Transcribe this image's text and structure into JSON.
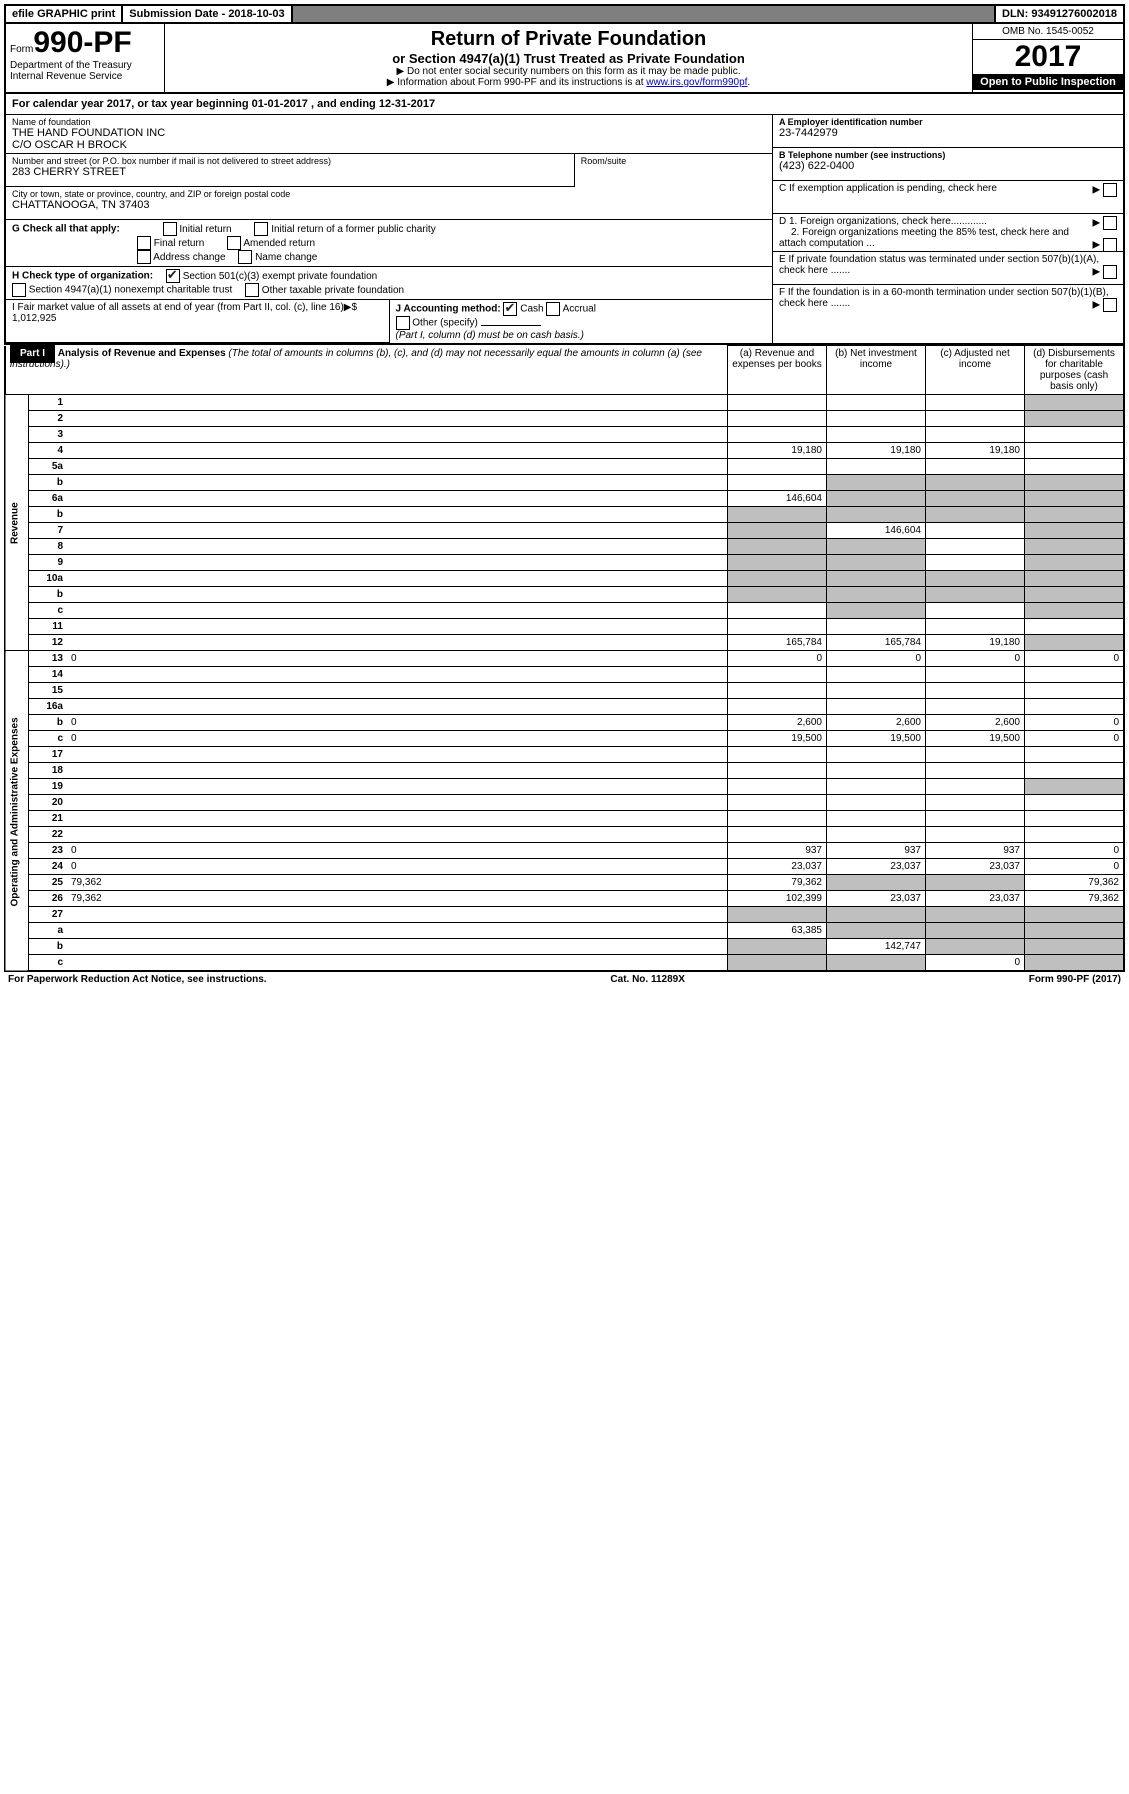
{
  "topbar": {
    "efile": "efile GRAPHIC print",
    "submission_label": "Submission Date - 2018-10-03",
    "dln": "DLN: 93491276002018"
  },
  "header": {
    "form_prefix": "Form",
    "form_number": "990-PF",
    "dept": "Department of the Treasury",
    "irs": "Internal Revenue Service",
    "title": "Return of Private Foundation",
    "subtitle": "or Section 4947(a)(1) Trust Treated as Private Foundation",
    "note1": "▶ Do not enter social security numbers on this form as it may be made public.",
    "note2_pre": "▶ Information about Form 990-PF and its instructions is at ",
    "note2_link": "www.irs.gov/form990pf",
    "note2_post": ".",
    "omb": "OMB No. 1545-0052",
    "year": "2017",
    "open": "Open to Public Inspection"
  },
  "calendar": {
    "text_pre": "For calendar year 2017, or tax year beginning ",
    "begin": "01-01-2017",
    "text_mid": " , and ending ",
    "end": "12-31-2017"
  },
  "foundation": {
    "name_lbl": "Name of foundation",
    "name1": "THE HAND FOUNDATION INC",
    "name2": "C/O OSCAR H BROCK",
    "addr_lbl": "Number and street (or P.O. box number if mail is not delivered to street address)",
    "addr": "283 CHERRY STREET",
    "room_lbl": "Room/suite",
    "room": "",
    "city_lbl": "City or town, state or province, country, and ZIP or foreign postal code",
    "city": "CHATTANOOGA, TN  37403",
    "ein_lbl": "A Employer identification number",
    "ein": "23-7442979",
    "tel_lbl": "B Telephone number (see instructions)",
    "tel": "(423) 622-0400",
    "c_lbl": "C If exemption application is pending, check here",
    "d1_lbl": "D 1. Foreign organizations, check here.............",
    "d2_lbl": "2. Foreign organizations meeting the 85% test, check here and attach computation ...",
    "e_lbl": "E  If private foundation status was terminated under section 507(b)(1)(A), check here .......",
    "f_lbl": "F  If the foundation is in a 60-month termination under section 507(b)(1)(B), check here .......",
    "g_lbl": "G Check all that apply:",
    "g_opts": [
      "Initial return",
      "Initial return of a former public charity",
      "Final return",
      "Amended return",
      "Address change",
      "Name change"
    ],
    "h_lbl": "H Check type of organization:",
    "h_opt1": "Section 501(c)(3) exempt private foundation",
    "h_opt2": "Section 4947(a)(1) nonexempt charitable trust",
    "h_opt3": "Other taxable private foundation",
    "i_lbl": "I Fair market value of all assets at end of year (from Part II, col. (c), line 16)▶$",
    "i_val": "1,012,925",
    "j_lbl": "J Accounting method:",
    "j_cash": "Cash",
    "j_accrual": "Accrual",
    "j_other": "Other (specify)",
    "j_note": "(Part I, column (d) must be on cash basis.)"
  },
  "part1": {
    "badge": "Part I",
    "title": "Analysis of Revenue and Expenses",
    "note": "(The total of amounts in columns (b), (c), and (d) may not necessarily equal the amounts in column (a) (see instructions).)",
    "col_a": "(a)  Revenue and expenses per books",
    "col_b": "(b)  Net investment income",
    "col_c": "(c)  Adjusted net income",
    "col_d": "(d)  Disbursements for charitable purposes (cash basis only)",
    "revenue_label": "Revenue",
    "expenses_label": "Operating and Administrative Expenses"
  },
  "rows": [
    {
      "n": "1",
      "d": "",
      "a": "",
      "b": "",
      "c": "",
      "sd": true
    },
    {
      "n": "2",
      "d": "",
      "a": "",
      "b": "",
      "c": "",
      "sd": true,
      "dots": true
    },
    {
      "n": "3",
      "d": "",
      "a": "",
      "b": "",
      "c": ""
    },
    {
      "n": "4",
      "d": "",
      "a": "19,180",
      "b": "19,180",
      "c": "19,180",
      "dots": true
    },
    {
      "n": "5a",
      "d": "",
      "a": "",
      "b": "",
      "c": "",
      "dots": true
    },
    {
      "n": "b",
      "d": "",
      "a": "",
      "b": "",
      "c": "",
      "sb": true,
      "sc": true,
      "sd": true
    },
    {
      "n": "6a",
      "d": "",
      "a": "146,604",
      "b": "",
      "c": "",
      "sb": true,
      "sc": true,
      "sd": true
    },
    {
      "n": "b",
      "d": "",
      "a": "",
      "b": "",
      "c": "",
      "sa": true,
      "sb": true,
      "sc": true,
      "sd": true
    },
    {
      "n": "7",
      "d": "",
      "a": "",
      "b": "146,604",
      "c": "",
      "sa": true,
      "sd": true,
      "dots": true
    },
    {
      "n": "8",
      "d": "",
      "a": "",
      "b": "",
      "c": "",
      "sa": true,
      "sb": true,
      "sd": true,
      "dots": true
    },
    {
      "n": "9",
      "d": "",
      "a": "",
      "b": "",
      "c": "",
      "sa": true,
      "sb": true,
      "sd": true,
      "dots": true
    },
    {
      "n": "10a",
      "d": "",
      "a": "",
      "b": "",
      "c": "",
      "sa": true,
      "sb": true,
      "sc": true,
      "sd": true
    },
    {
      "n": "b",
      "d": "",
      "a": "",
      "b": "",
      "c": "",
      "sa": true,
      "sb": true,
      "sc": true,
      "sd": true
    },
    {
      "n": "c",
      "d": "",
      "a": "",
      "b": "",
      "c": "",
      "sb": true,
      "sd": true,
      "dots": true
    },
    {
      "n": "11",
      "d": "",
      "a": "",
      "b": "",
      "c": "",
      "dots": true
    },
    {
      "n": "12",
      "d": "",
      "a": "165,784",
      "b": "165,784",
      "c": "19,180",
      "sd": true,
      "dots": true
    }
  ],
  "exp_rows": [
    {
      "n": "13",
      "d": "0",
      "a": "0",
      "b": "0",
      "c": "0"
    },
    {
      "n": "14",
      "d": "",
      "a": "",
      "b": "",
      "c": "",
      "dots": true
    },
    {
      "n": "15",
      "d": "",
      "a": "",
      "b": "",
      "c": "",
      "dots": true
    },
    {
      "n": "16a",
      "d": "",
      "a": "",
      "b": "",
      "c": "",
      "dots": true
    },
    {
      "n": "b",
      "d": "0",
      "a": "2,600",
      "b": "2,600",
      "c": "2,600",
      "dots": true
    },
    {
      "n": "c",
      "d": "0",
      "a": "19,500",
      "b": "19,500",
      "c": "19,500",
      "dots": true
    },
    {
      "n": "17",
      "d": "",
      "a": "",
      "b": "",
      "c": "",
      "dots": true
    },
    {
      "n": "18",
      "d": "",
      "a": "",
      "b": "",
      "c": "",
      "dots": true
    },
    {
      "n": "19",
      "d": "",
      "a": "",
      "b": "",
      "c": "",
      "sd": true,
      "dots": true
    },
    {
      "n": "20",
      "d": "",
      "a": "",
      "b": "",
      "c": "",
      "dots": true
    },
    {
      "n": "21",
      "d": "",
      "a": "",
      "b": "",
      "c": "",
      "dots": true
    },
    {
      "n": "22",
      "d": "",
      "a": "",
      "b": "",
      "c": "",
      "dots": true
    },
    {
      "n": "23",
      "d": "0",
      "a": "937",
      "b": "937",
      "c": "937",
      "dots": true
    },
    {
      "n": "24",
      "d": "0",
      "a": "23,037",
      "b": "23,037",
      "c": "23,037",
      "dots": true
    },
    {
      "n": "25",
      "d": "79,362",
      "a": "79,362",
      "b": "",
      "c": "",
      "sb": true,
      "sc": true,
      "dots": true
    },
    {
      "n": "26",
      "d": "79,362",
      "a": "102,399",
      "b": "23,037",
      "c": "23,037"
    },
    {
      "n": "27",
      "d": "",
      "a": "",
      "b": "",
      "c": "",
      "sa": true,
      "sb": true,
      "sc": true,
      "sd": true
    },
    {
      "n": "a",
      "d": "",
      "a": "63,385",
      "b": "",
      "c": "",
      "sb": true,
      "sc": true,
      "sd": true
    },
    {
      "n": "b",
      "d": "",
      "a": "",
      "b": "142,747",
      "c": "",
      "sa": true,
      "sc": true,
      "sd": true
    },
    {
      "n": "c",
      "d": "",
      "a": "",
      "b": "",
      "c": "0",
      "sa": true,
      "sb": true,
      "sd": true,
      "dots": true
    }
  ],
  "footer": {
    "left": "For Paperwork Reduction Act Notice, see instructions.",
    "mid": "Cat. No. 11289X",
    "right": "Form 990-PF (2017)"
  }
}
